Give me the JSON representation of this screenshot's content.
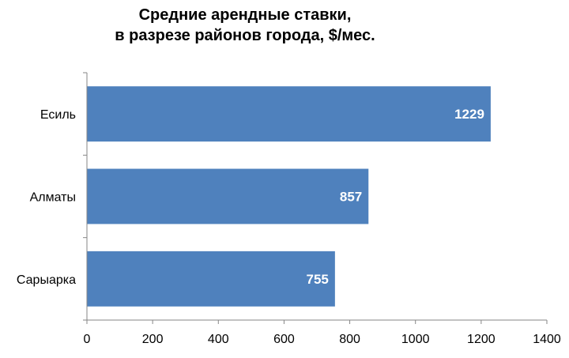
{
  "chart_data": {
    "type": "bar",
    "orientation": "horizontal",
    "title": [
      "Средние арендные ставки,",
      "в разрезе районов города, $/мес."
    ],
    "categories": [
      "Есиль",
      "Алматы",
      "Сарыарка"
    ],
    "values": [
      1229,
      857,
      755
    ],
    "data_labels": [
      "1229",
      "857",
      "755"
    ],
    "xlim": [
      0,
      1400
    ],
    "xticks": [
      0,
      200,
      400,
      600,
      800,
      1000,
      1200,
      1400
    ],
    "xtick_labels": [
      "0",
      "200",
      "400",
      "600",
      "800",
      "1000",
      "1200",
      "1400"
    ],
    "xlabel": "",
    "ylabel": "",
    "grid": false,
    "legend": "none",
    "bar_color": "#4F81BD",
    "data_label_color": "#FFFFFF"
  }
}
